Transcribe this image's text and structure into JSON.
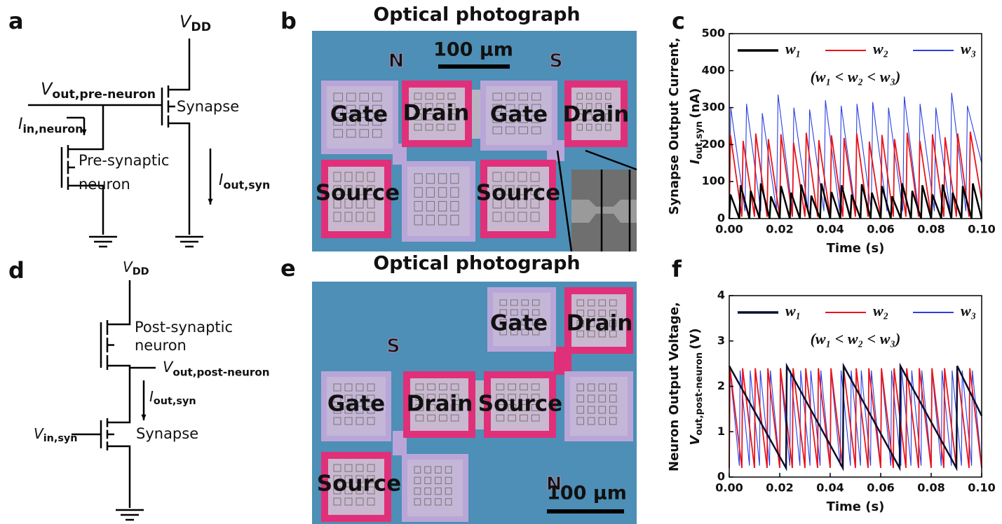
{
  "panels": {
    "a": {
      "letter": "a",
      "vdd": {
        "symbol": "V",
        "sub": "DD"
      },
      "vout": {
        "symbol": "V",
        "sub": "out,pre-neuron"
      },
      "iin": {
        "symbol": "I",
        "sub": "in,neuron"
      },
      "synapse": "Synapse",
      "neuron": [
        "Pre-synaptic",
        "neuron"
      ],
      "iout": {
        "symbol": "I",
        "sub": "out,syn"
      }
    },
    "b": {
      "letter": "b",
      "title": "Optical photograph",
      "scale": "100 µm",
      "marks": [
        "N",
        "S"
      ],
      "pads": [
        "Gate",
        "Drain",
        "Gate",
        "Drain",
        "Source",
        "Source"
      ]
    },
    "d": {
      "letter": "d",
      "vdd": {
        "symbol": "V",
        "sub": "DD"
      },
      "neuron": [
        "Post-synaptic",
        "neuron"
      ],
      "vout": {
        "symbol": "V",
        "sub": "out,post-neuron"
      },
      "iout": {
        "symbol": "I",
        "sub": "out,syn"
      },
      "vin": {
        "symbol": "V",
        "sub": "in,syn"
      },
      "synapse": "Synapse"
    },
    "e": {
      "letter": "e",
      "title": "Optical photograph",
      "scale": "100 µm",
      "marks": [
        "S",
        "N"
      ],
      "pads": [
        "Gate",
        "Drain",
        "Gate",
        "Drain",
        "Source",
        "Source"
      ]
    }
  },
  "chart_data": [
    {
      "type": "line",
      "panel": "c",
      "ylabel": {
        "line": "Synapse Output Current,",
        "symbol": "I",
        "sub": "out,syn",
        "unit": "(nA)"
      },
      "xlabel": "Time (s)",
      "annotation": "(w₁ < w₂ < w₃)",
      "xlim": [
        0,
        0.1
      ],
      "ylim": [
        0,
        500
      ],
      "xticks": [
        {
          "value": 0,
          "label": "0.00"
        },
        {
          "value": 0.02,
          "label": "0.02"
        },
        {
          "value": 0.04,
          "label": "0.04"
        },
        {
          "value": 0.06,
          "label": "0.06"
        },
        {
          "value": 0.08,
          "label": "0.08"
        },
        {
          "value": 0.1,
          "label": "0.10"
        }
      ],
      "yticks": [
        0,
        100,
        200,
        300,
        400,
        500
      ],
      "series": [
        {
          "name": "w₁",
          "color": "#000000",
          "x": [
            0,
            0.0005,
            0.004,
            0.0045,
            0.008,
            0.0085,
            0.012,
            0.0125,
            0.016,
            0.0165,
            0.02,
            0.0205,
            0.024,
            0.0245,
            0.028,
            0.0285,
            0.032,
            0.0325,
            0.036,
            0.0365,
            0.04,
            0.0405,
            0.044,
            0.0445,
            0.048,
            0.0485,
            0.052,
            0.0525,
            0.056,
            0.0565,
            0.06,
            0.0605,
            0.064,
            0.0645,
            0.068,
            0.0685,
            0.072,
            0.0725,
            0.076,
            0.0765,
            0.08,
            0.0805,
            0.084,
            0.0845,
            0.088,
            0.0885,
            0.092,
            0.0925,
            0.096,
            0.0965,
            0.1
          ],
          "values": [
            0,
            65,
            0,
            90,
            0,
            75,
            0,
            95,
            0,
            60,
            0,
            88,
            0,
            70,
            0,
            92,
            0,
            62,
            0,
            95,
            0,
            72,
            0,
            90,
            0,
            65,
            0,
            93,
            0,
            70,
            0,
            88,
            0,
            60,
            0,
            95,
            0,
            75,
            0,
            90,
            0,
            65,
            0,
            92,
            0,
            70,
            0,
            88,
            0,
            95,
            0
          ]
        },
        {
          "name": "w₂",
          "color": "#e8141c",
          "x": [
            0,
            0.0005,
            0.005,
            0.0055,
            0.01,
            0.0105,
            0.015,
            0.0155,
            0.02,
            0.0205,
            0.025,
            0.0255,
            0.03,
            0.0305,
            0.035,
            0.0355,
            0.04,
            0.0405,
            0.045,
            0.0455,
            0.05,
            0.0505,
            0.055,
            0.0555,
            0.06,
            0.0605,
            0.065,
            0.0655,
            0.07,
            0.0705,
            0.075,
            0.0755,
            0.08,
            0.0805,
            0.085,
            0.0855,
            0.09,
            0.0905,
            0.095,
            0.0955,
            0.1
          ],
          "values": [
            5,
            225,
            5,
            210,
            5,
            230,
            5,
            215,
            5,
            228,
            5,
            205,
            5,
            232,
            5,
            212,
            5,
            225,
            5,
            218,
            5,
            230,
            5,
            208,
            5,
            226,
            5,
            215,
            5,
            232,
            5,
            210,
            5,
            228,
            5,
            220,
            5,
            230,
            5,
            235,
            50
          ]
        },
        {
          "name": "w₃",
          "color": "#2b3fe0",
          "x": [
            0,
            0.0006,
            0.00625,
            0.00685,
            0.0125,
            0.0131,
            0.01875,
            0.01935,
            0.025,
            0.0256,
            0.03125,
            0.03185,
            0.0375,
            0.0381,
            0.04375,
            0.04435,
            0.05,
            0.0506,
            0.05625,
            0.05685,
            0.0625,
            0.0631,
            0.06875,
            0.06935,
            0.075,
            0.0756,
            0.08125,
            0.08185,
            0.0875,
            0.0881,
            0.09375,
            0.09435,
            0.1
          ],
          "values": [
            20,
            300,
            20,
            310,
            20,
            285,
            20,
            335,
            20,
            300,
            20,
            295,
            20,
            320,
            20,
            305,
            20,
            310,
            20,
            315,
            20,
            300,
            20,
            330,
            20,
            310,
            20,
            300,
            20,
            340,
            20,
            305,
            150
          ]
        }
      ]
    },
    {
      "type": "line",
      "panel": "f",
      "ylabel": {
        "line": "Neuron Output Voltage,",
        "symbol": "V",
        "sub": "out,post-neuron",
        "unit": "(V)"
      },
      "xlabel": "Time (s)",
      "annotation": "(w₁ < w₂ < w₃)",
      "xlim": [
        0,
        0.1
      ],
      "ylim": [
        0,
        4
      ],
      "xticks": [
        {
          "value": 0,
          "label": "0.00"
        },
        {
          "value": 0.02,
          "label": "0.02"
        },
        {
          "value": 0.04,
          "label": "0.04"
        },
        {
          "value": 0.06,
          "label": "0.06"
        },
        {
          "value": 0.08,
          "label": "0.08"
        },
        {
          "value": 0.1,
          "label": "0.10"
        }
      ],
      "yticks": [
        0,
        1,
        2,
        3,
        4
      ],
      "series": [
        {
          "name": "w₁",
          "color": "#0a0f2e",
          "x": [
            0,
            0.0225,
            0.0228,
            0.045,
            0.0453,
            0.0675,
            0.0678,
            0.09,
            0.0903,
            0.1
          ],
          "values": [
            2.45,
            0.2,
            2.45,
            0.2,
            2.45,
            0.2,
            2.45,
            0.2,
            2.45,
            1.35
          ]
        },
        {
          "name": "w₂",
          "color": "#e8141c",
          "x": [
            0,
            0.0003,
            0.005,
            0.0053,
            0.01,
            0.0103,
            0.015,
            0.0153,
            0.02,
            0.0203,
            0.025,
            0.0253,
            0.03,
            0.0303,
            0.035,
            0.0353,
            0.04,
            0.0403,
            0.045,
            0.0453,
            0.05,
            0.0503,
            0.055,
            0.0553,
            0.06,
            0.0603,
            0.065,
            0.0653,
            0.07,
            0.0703,
            0.075,
            0.0753,
            0.08,
            0.0803,
            0.085,
            0.0853,
            0.09,
            0.0903,
            0.095,
            0.0953,
            0.1
          ],
          "values": [
            0.2,
            2.4,
            0.2,
            2.4,
            0.2,
            2.4,
            0.2,
            2.4,
            0.2,
            2.4,
            0.2,
            2.4,
            0.2,
            2.4,
            0.2,
            2.4,
            0.2,
            2.4,
            0.2,
            2.4,
            0.2,
            2.4,
            0.2,
            2.4,
            0.2,
            2.4,
            0.2,
            2.4,
            0.2,
            2.4,
            0.2,
            2.4,
            0.2,
            2.4,
            0.2,
            2.4,
            0.2,
            2.4,
            0.2,
            2.4,
            0.2
          ]
        },
        {
          "name": "w₃",
          "color": "#2b3fe0",
          "x": [
            0,
            0.0003,
            0.004,
            0.0043,
            0.008,
            0.0083,
            0.012,
            0.0123,
            0.016,
            0.0163,
            0.02,
            0.0203,
            0.024,
            0.0243,
            0.028,
            0.0283,
            0.032,
            0.0323,
            0.036,
            0.0363,
            0.04,
            0.0403,
            0.044,
            0.0443,
            0.048,
            0.0483,
            0.052,
            0.0523,
            0.056,
            0.0563,
            0.06,
            0.0603,
            0.064,
            0.0643,
            0.068,
            0.0683,
            0.072,
            0.0723,
            0.076,
            0.0763,
            0.08,
            0.0803,
            0.084,
            0.0843,
            0.088,
            0.0883,
            0.092,
            0.0923,
            0.096,
            0.0963,
            0.1
          ],
          "values": [
            0.25,
            2.35,
            0.25,
            2.35,
            0.25,
            2.35,
            0.25,
            2.35,
            0.25,
            2.35,
            0.25,
            2.35,
            0.25,
            2.35,
            0.25,
            2.35,
            0.25,
            2.35,
            0.25,
            2.35,
            0.25,
            2.35,
            0.25,
            2.35,
            0.25,
            2.35,
            0.25,
            2.35,
            0.25,
            2.35,
            0.25,
            2.35,
            0.25,
            2.35,
            0.25,
            2.35,
            0.25,
            2.35,
            0.25,
            2.35,
            0.25,
            2.35,
            0.25,
            2.35,
            0.25,
            2.35,
            0.25,
            2.35,
            0.25,
            2.35,
            0.25
          ]
        }
      ]
    }
  ]
}
